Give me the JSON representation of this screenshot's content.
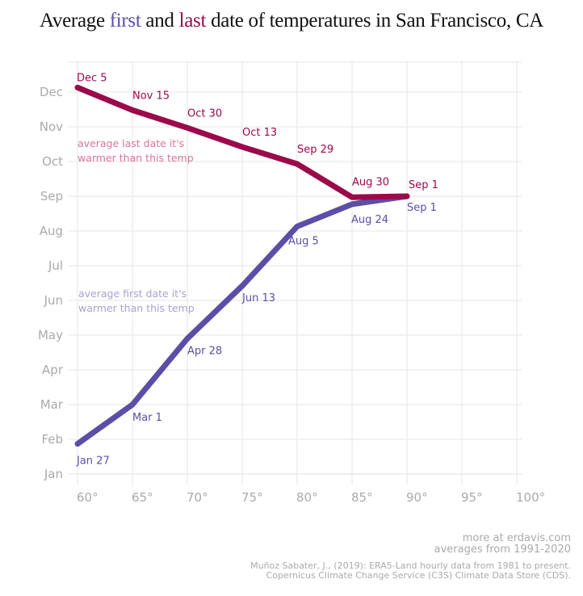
{
  "title": {
    "prefix": "Average ",
    "first": "first",
    "middle": " and ",
    "last": "last",
    "suffix": " date of temperatures in San Francisco, CA"
  },
  "colors": {
    "first": "#5b4ea6",
    "last": "#9b0a4b",
    "first_annotation": "#a9a2d4",
    "last_annotation": "#d9749c",
    "grid": "#eaeaea",
    "axis_text": "#aaaaaa"
  },
  "chart_data": {
    "type": "line",
    "title": "Average first and last date of temperatures in San Francisco, CA",
    "xlabel": "",
    "ylabel": "",
    "x_ticks": [
      60,
      65,
      70,
      75,
      80,
      85,
      90,
      95,
      100
    ],
    "x_tick_labels": [
      "60°",
      "65°",
      "70°",
      "75°",
      "80°",
      "85°",
      "90°",
      "95°",
      "100°"
    ],
    "xlim": [
      60,
      100
    ],
    "y_ticks": [
      "Jan",
      "Feb",
      "Mar",
      "Apr",
      "May",
      "Jun",
      "Jul",
      "Aug",
      "Sep",
      "Oct",
      "Nov",
      "Dec"
    ],
    "ylim_months": [
      1,
      12
    ],
    "grid": true,
    "series": [
      {
        "name": "last",
        "annotation": [
          "average last date it's",
          "warmer than this temp"
        ],
        "x": [
          60,
          65,
          70,
          75,
          80,
          85,
          90
        ],
        "month_values": [
          12.13,
          11.48,
          10.97,
          10.42,
          9.93,
          8.97,
          9.0
        ],
        "labels": [
          "Dec 5",
          "Nov 15",
          "Oct 30",
          "Oct 13",
          "Sep 29",
          "Aug 30",
          "Sep 1"
        ]
      },
      {
        "name": "first",
        "annotation": [
          "average first date it's",
          "warmer than this temp"
        ],
        "x": [
          60,
          65,
          70,
          75,
          80,
          85,
          90
        ],
        "month_values": [
          1.87,
          3.0,
          4.9,
          6.42,
          8.13,
          8.77,
          9.0
        ],
        "labels": [
          "Jan 27",
          "Mar 1",
          "Apr 28",
          "Jun 13",
          "Aug 5",
          "Aug 24",
          "Sep 1"
        ]
      }
    ]
  },
  "footer": {
    "line1": "more at erdavis.com",
    "line2": "averages from 1991-2020",
    "line3": "Muñoz Sabater, J., (2019): ERA5-Land hourly data from 1981 to present.",
    "line4": "Copernicus Climate Change Service (C3S) Climate Data Store (CDS)."
  }
}
